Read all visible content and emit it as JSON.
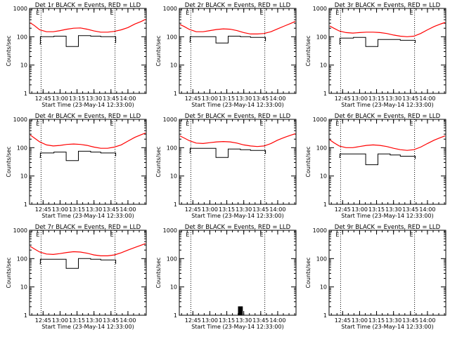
{
  "figure": {
    "tick_labels_x": [
      "12:45",
      "13:00",
      "13:15",
      "13:30",
      "13:45",
      "14:00"
    ],
    "tick_values_x": [
      12.75,
      13.0,
      13.25,
      13.5,
      13.75,
      14.0
    ],
    "tick_labels_y": [
      "1",
      "10",
      "100",
      "1000"
    ],
    "xlim": [
      12.55,
      14.27
    ],
    "ylim": [
      1,
      1000
    ],
    "y_scale": "log",
    "eclipse_marker": "E",
    "eclipse_times": [
      12.72,
      13.81
    ],
    "colors": {
      "events": "#000000",
      "lld": "#ff0000"
    }
  },
  "chart_data": [
    {
      "type": "line",
      "title": "Det 1r BLACK = Events, RED = LLD",
      "xlabel": "Start Time (23-May-14 12:33:00)",
      "ylabel": "Counts/sec",
      "series": [
        {
          "name": "Events",
          "color": "#000000",
          "points": [
            [
              12.7,
              55
            ],
            [
              12.71,
              100
            ],
            [
              12.9,
              100
            ],
            [
              12.91,
              105
            ],
            [
              13.08,
              105
            ],
            [
              13.09,
              45
            ],
            [
              13.26,
              45
            ],
            [
              13.27,
              110
            ],
            [
              13.45,
              105
            ],
            [
              13.6,
              100
            ],
            [
              13.8,
              100
            ],
            [
              13.82,
              60
            ]
          ]
        },
        {
          "name": "LLD",
          "color": "#ff0000",
          "points": [
            [
              12.56,
              310
            ],
            [
              12.62,
              250
            ],
            [
              12.7,
              175
            ],
            [
              12.8,
              150
            ],
            [
              12.9,
              150
            ],
            [
              13.0,
              165
            ],
            [
              13.1,
              185
            ],
            [
              13.2,
              200
            ],
            [
              13.3,
              205
            ],
            [
              13.4,
              185
            ],
            [
              13.5,
              160
            ],
            [
              13.6,
              145
            ],
            [
              13.7,
              145
            ],
            [
              13.8,
              155
            ],
            [
              13.9,
              175
            ],
            [
              14.0,
              210
            ],
            [
              14.1,
              280
            ],
            [
              14.2,
              350
            ],
            [
              14.26,
              410
            ]
          ]
        }
      ]
    },
    {
      "type": "line",
      "title": "Det 2r BLACK = Events, RED = LLD",
      "xlabel": "Start Time (23-May-14 12:33:00)",
      "ylabel": "Counts/sec",
      "series": [
        {
          "name": "Events",
          "color": "#000000",
          "points": [
            [
              12.7,
              65
            ],
            [
              12.71,
              100
            ],
            [
              12.9,
              100
            ],
            [
              12.91,
              100
            ],
            [
              13.08,
              100
            ],
            [
              13.09,
              60
            ],
            [
              13.26,
              60
            ],
            [
              13.27,
              105
            ],
            [
              13.45,
              100
            ],
            [
              13.6,
              95
            ],
            [
              13.8,
              95
            ],
            [
              13.82,
              70
            ]
          ]
        },
        {
          "name": "LLD",
          "color": "#ff0000",
          "points": [
            [
              12.56,
              270
            ],
            [
              12.62,
              230
            ],
            [
              12.7,
              180
            ],
            [
              12.8,
              150
            ],
            [
              12.9,
              150
            ],
            [
              13.0,
              165
            ],
            [
              13.1,
              180
            ],
            [
              13.2,
              190
            ],
            [
              13.3,
              185
            ],
            [
              13.4,
              165
            ],
            [
              13.5,
              140
            ],
            [
              13.6,
              125
            ],
            [
              13.7,
              125
            ],
            [
              13.8,
              130
            ],
            [
              13.9,
              150
            ],
            [
              14.0,
              190
            ],
            [
              14.1,
              240
            ],
            [
              14.2,
              300
            ],
            [
              14.26,
              350
            ]
          ]
        }
      ]
    },
    {
      "type": "line",
      "title": "Det 3r BLACK = Events, RED = LLD",
      "xlabel": "Start Time (23-May-14 12:33:00)",
      "ylabel": "Counts/sec",
      "series": [
        {
          "name": "Events",
          "color": "#000000",
          "points": [
            [
              12.7,
              55
            ],
            [
              12.71,
              90
            ],
            [
              12.9,
              90
            ],
            [
              12.91,
              95
            ],
            [
              13.08,
              95
            ],
            [
              13.09,
              45
            ],
            [
              13.26,
              45
            ],
            [
              13.27,
              80
            ],
            [
              13.45,
              80
            ],
            [
              13.6,
              75
            ],
            [
              13.8,
              75
            ],
            [
              13.82,
              60
            ]
          ]
        },
        {
          "name": "LLD",
          "color": "#ff0000",
          "points": [
            [
              12.56,
              240
            ],
            [
              12.62,
              200
            ],
            [
              12.7,
              160
            ],
            [
              12.8,
              140
            ],
            [
              12.9,
              135
            ],
            [
              13.0,
              140
            ],
            [
              13.1,
              145
            ],
            [
              13.2,
              145
            ],
            [
              13.3,
              140
            ],
            [
              13.4,
              130
            ],
            [
              13.5,
              115
            ],
            [
              13.6,
              105
            ],
            [
              13.7,
              100
            ],
            [
              13.8,
              105
            ],
            [
              13.9,
              130
            ],
            [
              14.0,
              175
            ],
            [
              14.1,
              230
            ],
            [
              14.2,
              285
            ],
            [
              14.26,
              320
            ]
          ]
        }
      ]
    },
    {
      "type": "line",
      "title": "Det 4r BLACK = Events, RED = LLD",
      "xlabel": "Start Time (23-May-14 12:33:00)",
      "ylabel": "Counts/sec",
      "series": [
        {
          "name": "Events",
          "color": "#000000",
          "points": [
            [
              12.7,
              45
            ],
            [
              12.71,
              65
            ],
            [
              12.9,
              65
            ],
            [
              12.91,
              70
            ],
            [
              13.08,
              70
            ],
            [
              13.09,
              35
            ],
            [
              13.26,
              35
            ],
            [
              13.27,
              75
            ],
            [
              13.45,
              70
            ],
            [
              13.6,
              65
            ],
            [
              13.8,
              65
            ],
            [
              13.82,
              50
            ]
          ]
        },
        {
          "name": "LLD",
          "color": "#ff0000",
          "points": [
            [
              12.56,
              280
            ],
            [
              12.62,
              220
            ],
            [
              12.7,
              160
            ],
            [
              12.8,
              125
            ],
            [
              12.9,
              115
            ],
            [
              13.0,
              120
            ],
            [
              13.1,
              130
            ],
            [
              13.2,
              135
            ],
            [
              13.3,
              130
            ],
            [
              13.4,
              120
            ],
            [
              13.5,
              105
            ],
            [
              13.6,
              95
            ],
            [
              13.7,
              95
            ],
            [
              13.8,
              105
            ],
            [
              13.9,
              125
            ],
            [
              14.0,
              170
            ],
            [
              14.1,
              230
            ],
            [
              14.2,
              290
            ],
            [
              14.26,
              330
            ]
          ]
        }
      ]
    },
    {
      "type": "line",
      "title": "Det 5r BLACK = Events, RED = LLD",
      "xlabel": "Start Time (23-May-14 12:33:00)",
      "ylabel": "Counts/sec",
      "series": [
        {
          "name": "Events",
          "color": "#000000",
          "points": [
            [
              12.7,
              65
            ],
            [
              12.71,
              95
            ],
            [
              12.9,
              95
            ],
            [
              12.91,
              95
            ],
            [
              13.08,
              95
            ],
            [
              13.09,
              45
            ],
            [
              13.26,
              45
            ],
            [
              13.27,
              90
            ],
            [
              13.45,
              85
            ],
            [
              13.6,
              80
            ],
            [
              13.8,
              80
            ],
            [
              13.82,
              60
            ]
          ]
        },
        {
          "name": "LLD",
          "color": "#ff0000",
          "points": [
            [
              12.56,
              260
            ],
            [
              12.62,
              220
            ],
            [
              12.7,
              175
            ],
            [
              12.8,
              145
            ],
            [
              12.9,
              140
            ],
            [
              13.0,
              150
            ],
            [
              13.1,
              160
            ],
            [
              13.2,
              165
            ],
            [
              13.3,
              160
            ],
            [
              13.4,
              145
            ],
            [
              13.5,
              125
            ],
            [
              13.6,
              115
            ],
            [
              13.7,
              110
            ],
            [
              13.8,
              115
            ],
            [
              13.9,
              140
            ],
            [
              14.0,
              185
            ],
            [
              14.1,
              230
            ],
            [
              14.2,
              280
            ],
            [
              14.26,
              310
            ]
          ]
        }
      ]
    },
    {
      "type": "line",
      "title": "Det 6r BLACK = Events, RED = LLD",
      "xlabel": "Start Time (23-May-14 12:33:00)",
      "ylabel": "Counts/sec",
      "series": [
        {
          "name": "Events",
          "color": "#000000",
          "points": [
            [
              12.7,
              45
            ],
            [
              12.71,
              60
            ],
            [
              12.9,
              60
            ],
            [
              12.91,
              60
            ],
            [
              13.08,
              60
            ],
            [
              13.09,
              25
            ],
            [
              13.26,
              25
            ],
            [
              13.27,
              60
            ],
            [
              13.45,
              55
            ],
            [
              13.6,
              50
            ],
            [
              13.8,
              50
            ],
            [
              13.82,
              40
            ]
          ]
        },
        {
          "name": "LLD",
          "color": "#ff0000",
          "points": [
            [
              12.56,
              190
            ],
            [
              12.62,
              150
            ],
            [
              12.7,
              115
            ],
            [
              12.8,
              100
            ],
            [
              12.9,
              100
            ],
            [
              13.0,
              110
            ],
            [
              13.1,
              120
            ],
            [
              13.2,
              125
            ],
            [
              13.3,
              120
            ],
            [
              13.4,
              110
            ],
            [
              13.5,
              95
            ],
            [
              13.6,
              85
            ],
            [
              13.7,
              80
            ],
            [
              13.8,
              85
            ],
            [
              13.9,
              105
            ],
            [
              14.0,
              140
            ],
            [
              14.1,
              185
            ],
            [
              14.2,
              230
            ],
            [
              14.26,
              260
            ]
          ]
        }
      ]
    },
    {
      "type": "line",
      "title": "Det 7r BLACK = Events, RED = LLD",
      "xlabel": "Start Time (23-May-14 12:33:00)",
      "ylabel": "Counts/sec",
      "series": [
        {
          "name": "Events",
          "color": "#000000",
          "points": [
            [
              12.7,
              65
            ],
            [
              12.71,
              95
            ],
            [
              12.9,
              95
            ],
            [
              12.91,
              95
            ],
            [
              13.08,
              95
            ],
            [
              13.09,
              45
            ],
            [
              13.26,
              45
            ],
            [
              13.27,
              100
            ],
            [
              13.45,
              95
            ],
            [
              13.6,
              90
            ],
            [
              13.8,
              90
            ],
            [
              13.82,
              65
            ]
          ]
        },
        {
          "name": "LLD",
          "color": "#ff0000",
          "points": [
            [
              12.56,
              270
            ],
            [
              12.62,
              220
            ],
            [
              12.7,
              170
            ],
            [
              12.8,
              145
            ],
            [
              12.9,
              140
            ],
            [
              13.0,
              150
            ],
            [
              13.1,
              165
            ],
            [
              13.2,
              175
            ],
            [
              13.3,
              170
            ],
            [
              13.4,
              155
            ],
            [
              13.5,
              135
            ],
            [
              13.6,
              125
            ],
            [
              13.7,
              125
            ],
            [
              13.8,
              135
            ],
            [
              13.9,
              160
            ],
            [
              14.0,
              200
            ],
            [
              14.1,
              245
            ],
            [
              14.2,
              300
            ],
            [
              14.26,
              340
            ]
          ]
        }
      ]
    },
    {
      "type": "line",
      "title": "Det 8r BLACK = Events, RED = LLD",
      "xlabel": "Start Time (23-May-14 12:33:00)",
      "ylabel": "Counts/sec",
      "series": [
        {
          "name": "Events",
          "color": "#000000",
          "points": [
            [
              13.42,
              1
            ],
            [
              13.42,
              2
            ],
            [
              13.43,
              1
            ],
            [
              13.43,
              2
            ],
            [
              13.44,
              1
            ],
            [
              13.44,
              2
            ],
            [
              13.45,
              1
            ],
            [
              13.45,
              2
            ],
            [
              13.46,
              1
            ],
            [
              13.46,
              2
            ],
            [
              13.47,
              1
            ],
            [
              13.47,
              2
            ],
            [
              13.48,
              1
            ],
            [
              13.48,
              2
            ]
          ]
        }
      ]
    },
    {
      "type": "line",
      "title": "Det 9r BLACK = Events, RED = LLD",
      "xlabel": "Start Time (23-May-14 12:33:00)",
      "ylabel": "Counts/sec",
      "series": []
    }
  ]
}
